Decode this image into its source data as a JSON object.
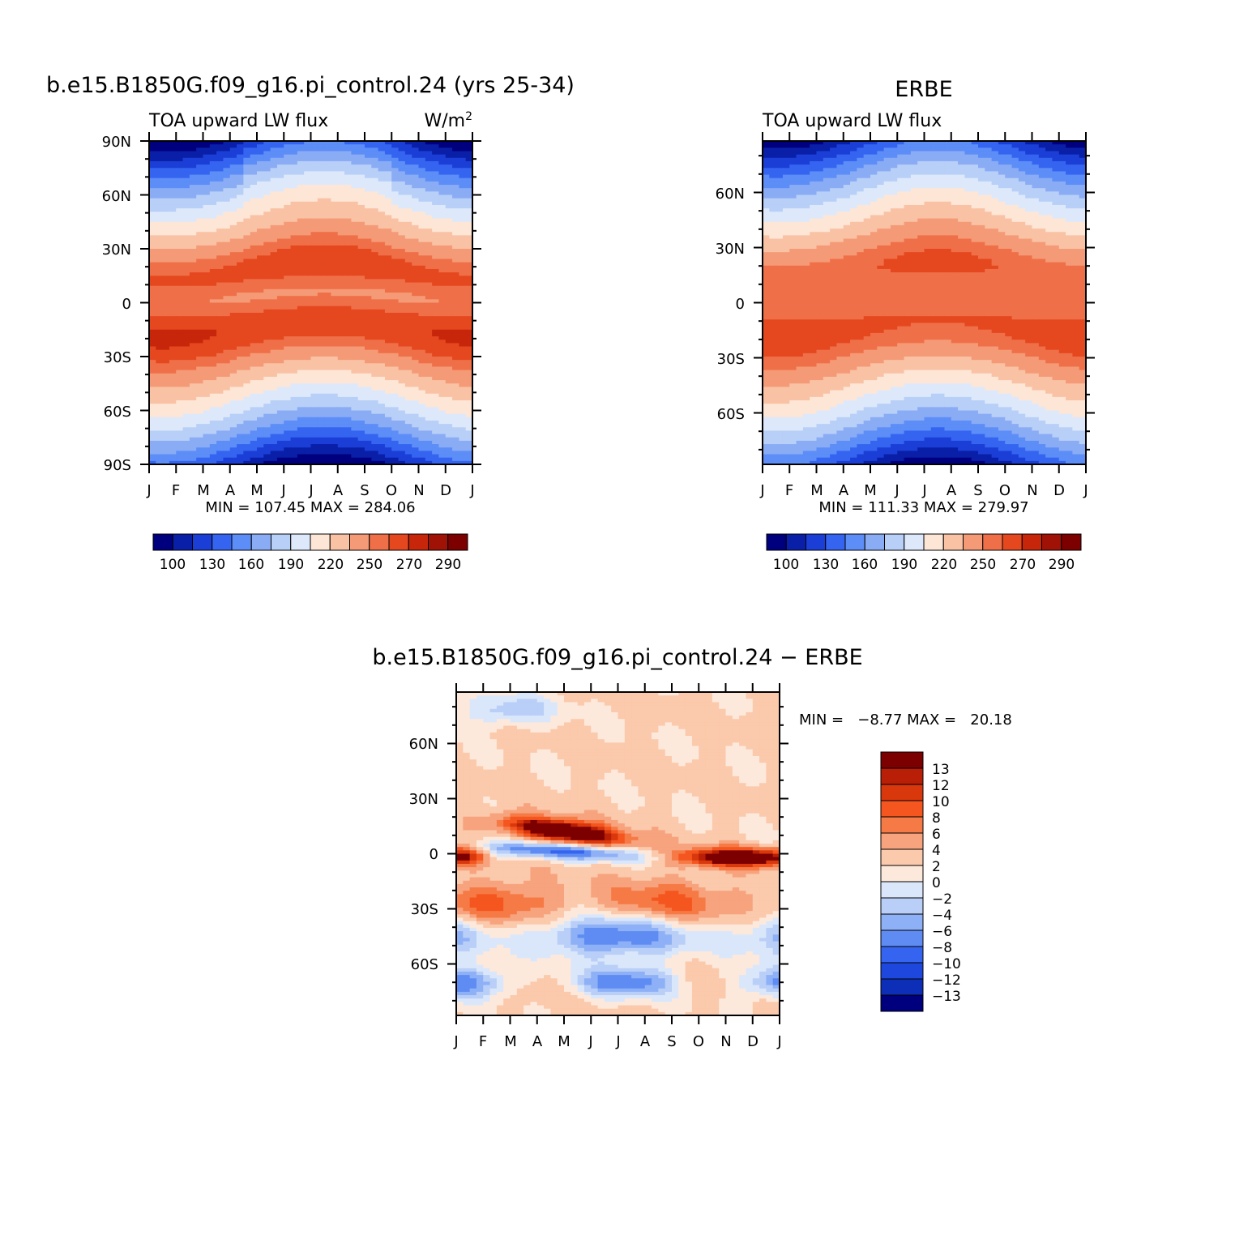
{
  "chart_data": [
    {
      "type": "heatmap",
      "title": "b.e15.B1850G.f09_g16.pi_control.24 (yrs 25-34)",
      "subtitle": "TOA upward LW flux",
      "units": "W/m",
      "units_sup": "2",
      "x_tick_labels": [
        "J",
        "F",
        "M",
        "A",
        "M",
        "J",
        "J",
        "A",
        "S",
        "O",
        "N",
        "D",
        "J"
      ],
      "y_tick_labels": [
        "90N",
        "60N",
        "30N",
        "0",
        "30S",
        "60S",
        "90S"
      ],
      "y_tick_values": [
        90,
        60,
        30,
        0,
        -30,
        -60,
        -90
      ],
      "ylim": [
        -90,
        90
      ],
      "stats_text": "MIN = 107.45 MAX = 284.06",
      "min": 107.45,
      "max": 284.06,
      "colorbar_levels": [
        100,
        130,
        160,
        190,
        220,
        250,
        270,
        290
      ],
      "colorbar_colors": [
        "#00007f",
        "#0a1fa8",
        "#1b3fd6",
        "#3565f0",
        "#5d8df7",
        "#8aacf5",
        "#b8cff7",
        "#dde9fb",
        "#fde6d6",
        "#f9c2a5",
        "#f59a76",
        "#ef7048",
        "#e5481f",
        "#c8260a",
        "#a01206",
        "#7d0000"
      ]
    },
    {
      "type": "heatmap",
      "title": "ERBE",
      "subtitle": "TOA upward LW flux",
      "x_tick_labels": [
        "J",
        "F",
        "M",
        "A",
        "M",
        "J",
        "J",
        "A",
        "S",
        "O",
        "N",
        "D",
        "J"
      ],
      "y_tick_labels": [
        "60N",
        "30N",
        "0",
        "30S",
        "60S"
      ],
      "y_tick_values": [
        60,
        30,
        0,
        -30,
        -60
      ],
      "ylim": [
        -88,
        88
      ],
      "stats_text": "MIN = 111.33 MAX = 279.97",
      "min": 111.33,
      "max": 279.97,
      "colorbar_levels": [
        100,
        130,
        160,
        190,
        220,
        250,
        270,
        290
      ],
      "colorbar_colors": [
        "#00007f",
        "#0a1fa8",
        "#1b3fd6",
        "#3565f0",
        "#5d8df7",
        "#8aacf5",
        "#b8cff7",
        "#dde9fb",
        "#fde6d6",
        "#f9c2a5",
        "#f59a76",
        "#ef7048",
        "#e5481f",
        "#c8260a",
        "#a01206",
        "#7d0000"
      ]
    },
    {
      "type": "heatmap",
      "title": "b.e15.B1850G.f09_g16.pi_control.24 − ERBE",
      "x_tick_labels": [
        "J",
        "F",
        "M",
        "A",
        "M",
        "J",
        "J",
        "A",
        "S",
        "O",
        "N",
        "D",
        "J"
      ],
      "y_tick_labels": [
        "60N",
        "30N",
        "0",
        "30S",
        "60S"
      ],
      "y_tick_values": [
        60,
        30,
        0,
        -30,
        -60
      ],
      "ylim": [
        -88,
        88
      ],
      "stats_text": "MIN =   −8.77 MAX =   20.18",
      "min": -8.77,
      "max": 20.18,
      "colorbar_levels": [
        "13",
        "12",
        "10",
        "8",
        "6",
        "4",
        "2",
        "0",
        "−2",
        "−4",
        "−6",
        "−8",
        "−10",
        "−12",
        "−13"
      ],
      "colorbar_colors": [
        "#7d0000",
        "#b81f06",
        "#d8380c",
        "#f5561f",
        "#f67a45",
        "#f7a37e",
        "#fbc9ab",
        "#fde9dc",
        "#dae7fb",
        "#b9cff7",
        "#8eb0f6",
        "#5f8cf3",
        "#3565f0",
        "#1e47dd",
        "#0d2fb8",
        "#00007f"
      ]
    }
  ]
}
